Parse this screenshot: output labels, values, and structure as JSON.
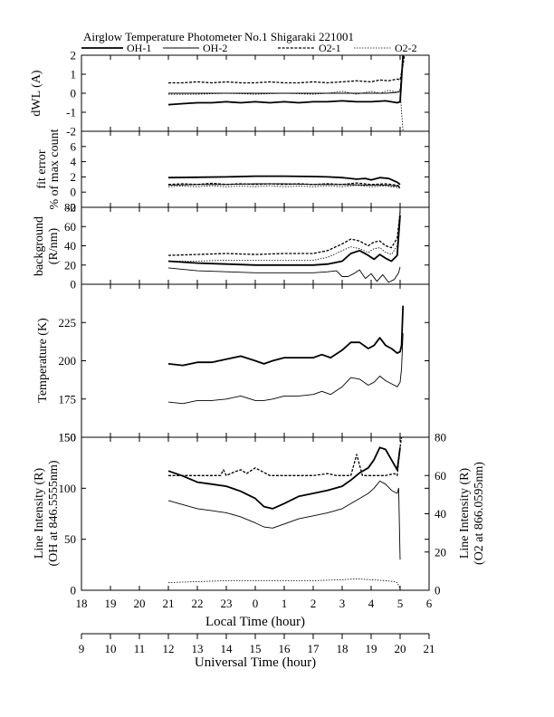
{
  "chart_data": {
    "type": "line",
    "title": "Airglow Temperature Photometer No.1  Shigaraki   221001",
    "legend": {
      "placement": "top",
      "entries": [
        {
          "name": "OH-1",
          "style": "solid-thick"
        },
        {
          "name": "OH-2",
          "style": "solid-thin"
        },
        {
          "name": "O2-1",
          "style": "dashed"
        },
        {
          "name": "O2-2",
          "style": "dotted"
        }
      ]
    },
    "x_axis_bottom": {
      "label": "Local Time (hour)",
      "range": [
        18,
        30
      ],
      "ticks": [
        18,
        19,
        20,
        21,
        22,
        23,
        24,
        25,
        26,
        27,
        28,
        29,
        30
      ],
      "tick_labels": [
        "18",
        "19",
        "20",
        "21",
        "22",
        "23",
        "0",
        "1",
        "2",
        "3",
        "4",
        "5",
        "6"
      ]
    },
    "x_axis_secondary": {
      "label": "Universal Time (hour)",
      "ticks": [
        9,
        10,
        11,
        12,
        13,
        14,
        15,
        16,
        17,
        18,
        19,
        20,
        21
      ],
      "tick_labels": [
        "9",
        "10",
        "11",
        "12",
        "13",
        "14",
        "15",
        "16",
        "17",
        "18",
        "19",
        "20",
        "21"
      ]
    },
    "panels": [
      {
        "id": "dwl",
        "ylabel": "dWL (A)",
        "ylim": [
          -2,
          2
        ],
        "yticks": [
          -2,
          -1,
          0,
          1,
          2
        ],
        "series": [
          {
            "name": "OH-1",
            "x": [
              21,
              21.5,
              22,
              22.5,
              23,
              23.5,
              24,
              24.5,
              25,
              25.5,
              26,
              26.5,
              27,
              27.5,
              28,
              28.5,
              28.9,
              29,
              29.1
            ],
            "y": [
              -0.6,
              -0.55,
              -0.5,
              -0.5,
              -0.45,
              -0.5,
              -0.45,
              -0.5,
              -0.45,
              -0.5,
              -0.45,
              -0.45,
              -0.4,
              -0.45,
              -0.45,
              -0.4,
              -0.5,
              -0.45,
              2.0
            ]
          },
          {
            "name": "OH-2",
            "x": [
              21,
              22,
              23,
              24,
              25,
              26,
              27,
              28,
              28.5,
              28.9,
              29,
              29.1
            ],
            "y": [
              0.0,
              0.0,
              0.0,
              0.0,
              0.0,
              0.0,
              0.0,
              0.0,
              0.0,
              0.05,
              0.1,
              2.0
            ]
          },
          {
            "name": "O2-1",
            "x": [
              21,
              21.5,
              22,
              22.5,
              23,
              23.5,
              24,
              24.5,
              25,
              25.5,
              26,
              26.5,
              27,
              27.5,
              28,
              28.3,
              28.6,
              28.9,
              29,
              29.1,
              29.15
            ],
            "y": [
              0.55,
              0.55,
              0.6,
              0.55,
              0.6,
              0.55,
              0.55,
              0.6,
              0.55,
              0.55,
              0.6,
              0.55,
              0.6,
              0.65,
              0.6,
              0.7,
              0.65,
              0.75,
              0.7,
              1.5,
              2.0
            ]
          },
          {
            "name": "O2-2",
            "x": [
              21,
              22,
              23,
              24,
              25,
              26,
              26.5,
              27,
              27.5,
              28,
              28.3,
              28.6,
              28.9,
              29,
              29.05,
              29.1
            ],
            "y": [
              -0.05,
              -0.05,
              0.0,
              -0.05,
              0.0,
              -0.05,
              0.0,
              0.1,
              -0.05,
              0.1,
              0.0,
              0.15,
              0.05,
              0.2,
              -1.0,
              -2.0
            ]
          }
        ]
      },
      {
        "id": "fit",
        "ylabel": "fit error",
        "ylabel2": "% of max count",
        "ylim": [
          -2,
          8
        ],
        "yticks": [
          -2,
          0,
          2,
          4,
          6
        ],
        "series": [
          {
            "name": "OH-1",
            "x": [
              21,
              22,
              23,
              24,
              25,
              26,
              26.5,
              27,
              27.5,
              27.8,
              28,
              28.3,
              28.6,
              28.9,
              29
            ],
            "y": [
              1.9,
              1.95,
              2.0,
              2.1,
              2.1,
              2.05,
              2.0,
              1.9,
              1.7,
              1.8,
              1.6,
              1.9,
              1.8,
              1.3,
              1.0
            ]
          },
          {
            "name": "OH-2",
            "x": [
              21,
              22,
              23,
              24,
              25,
              26,
              27,
              28,
              28.5,
              28.9,
              29
            ],
            "y": [
              0.9,
              1.0,
              1.0,
              1.1,
              1.1,
              1.0,
              1.0,
              0.9,
              0.9,
              0.8,
              0.6
            ]
          },
          {
            "name": "O2-1",
            "x": [
              21,
              21.5,
              22,
              22.5,
              23,
              23.5,
              24,
              24.5,
              25,
              25.5,
              26,
              26.5,
              27,
              27.5,
              28,
              28.5,
              28.9,
              29
            ],
            "y": [
              1.0,
              1.1,
              1.0,
              1.15,
              1.0,
              1.1,
              1.0,
              1.1,
              1.0,
              1.1,
              1.0,
              1.1,
              1.0,
              1.2,
              1.0,
              1.1,
              0.9,
              0.7
            ]
          },
          {
            "name": "O2-2",
            "x": [
              21,
              21.5,
              22,
              22.5,
              23,
              23.5,
              24,
              24.5,
              25,
              25.5,
              26,
              26.5,
              27,
              27.5,
              28,
              28.5,
              28.9,
              29
            ],
            "y": [
              0.7,
              0.8,
              0.7,
              0.85,
              0.7,
              0.8,
              0.7,
              0.85,
              0.7,
              0.8,
              0.7,
              0.85,
              0.7,
              0.9,
              0.7,
              0.8,
              0.6,
              0.5
            ]
          }
        ]
      },
      {
        "id": "bg",
        "ylabel": "background",
        "ylabel2": "(R/nm)",
        "ylim": [
          0,
          80
        ],
        "yticks": [
          0,
          20,
          40,
          60,
          80
        ],
        "series": [
          {
            "name": "OH-1",
            "x": [
              21,
              22,
              23,
              24,
              25,
              26,
              26.5,
              27,
              27.3,
              27.6,
              27.9,
              28.1,
              28.3,
              28.5,
              28.7,
              28.9,
              29
            ],
            "y": [
              24,
              22,
              21,
              20,
              20,
              20,
              21,
              24,
              32,
              35,
              30,
              26,
              31,
              27,
              24,
              30,
              72
            ]
          },
          {
            "name": "OH-2",
            "x": [
              21,
              22,
              23,
              24,
              25,
              26,
              26.5,
              26.8,
              27,
              27.2,
              27.4,
              27.6,
              27.8,
              28,
              28.2,
              28.4,
              28.6,
              28.8,
              28.95,
              29
            ],
            "y": [
              17,
              14,
              13,
              12,
              12,
              12,
              13,
              14,
              8,
              8,
              11,
              15,
              6,
              11,
              3,
              10,
              2,
              5,
              12,
              18
            ]
          },
          {
            "name": "O2-1",
            "x": [
              21,
              22,
              23,
              24,
              25,
              26,
              26.5,
              27,
              27.3,
              27.6,
              27.9,
              28.1,
              28.3,
              28.5,
              28.7,
              28.9,
              29
            ],
            "y": [
              30,
              31,
              32,
              31,
              32,
              32,
              35,
              42,
              47,
              45,
              40,
              44,
              45,
              40,
              38,
              48,
              75
            ]
          },
          {
            "name": "O2-2",
            "x": [
              21,
              22,
              23,
              24,
              25,
              26,
              26.5,
              27,
              27.3,
              27.6,
              27.9,
              28.1,
              28.3,
              28.5,
              28.7,
              28.9,
              29
            ],
            "y": [
              24,
              24,
              25,
              25,
              25,
              25,
              28,
              35,
              39,
              37,
              33,
              37,
              38,
              33,
              31,
              40,
              78
            ]
          }
        ]
      },
      {
        "id": "temp",
        "ylabel": "Temperature (K)",
        "ylim": [
          150,
          250
        ],
        "yticks": [
          150,
          175,
          200,
          225
        ],
        "series": [
          {
            "name": "OH-1",
            "x": [
              21,
              21.5,
              22,
              22.5,
              23,
              23.5,
              24,
              24.3,
              24.6,
              25,
              25.5,
              26,
              26.3,
              26.6,
              27,
              27.3,
              27.6,
              27.9,
              28.1,
              28.3,
              28.5,
              28.7,
              28.9,
              29,
              29.05,
              29.1
            ],
            "y": [
              198,
              197,
              199,
              199,
              201,
              203,
              200,
              198,
              200,
              202,
              202,
              202,
              204,
              202,
              207,
              212,
              212,
              208,
              210,
              215,
              210,
              208,
              205,
              206,
              210,
              236
            ]
          },
          {
            "name": "OH-2",
            "x": [
              21,
              21.5,
              22,
              22.5,
              23,
              23.5,
              24,
              24.3,
              24.6,
              25,
              25.5,
              26,
              26.3,
              26.6,
              27,
              27.3,
              27.6,
              27.9,
              28.1,
              28.3,
              28.5,
              28.7,
              28.9,
              29,
              29.05,
              29.1
            ],
            "y": [
              173,
              172,
              174,
              174,
              175,
              177,
              174,
              174,
              175,
              177,
              177,
              178,
              180,
              178,
              183,
              189,
              188,
              184,
              186,
              190,
              187,
              185,
              183,
              186,
              195,
              218
            ]
          }
        ]
      },
      {
        "id": "intensity",
        "ylabel": "Line Intensity (R)",
        "ylabel2": "(OH at 846.5555nm)",
        "ylabel_right": "Line Intensity (R)",
        "ylabel_right2": "(O2 at 866.0595nm)",
        "ylim": [
          0,
          150
        ],
        "yticks": [
          0,
          50,
          100,
          150
        ],
        "ylim_right": [
          0,
          80
        ],
        "yticks_right": [
          0,
          20,
          40,
          60,
          80
        ],
        "series": [
          {
            "name": "OH-1",
            "axis": "left",
            "x": [
              21,
              21.5,
              22,
              22.5,
              23,
              23.5,
              24,
              24.3,
              24.6,
              25,
              25.5,
              26,
              26.5,
              27,
              27.3,
              27.6,
              27.9,
              28.1,
              28.3,
              28.5,
              28.7,
              28.9,
              29
            ],
            "y": [
              117,
              112,
              106,
              104,
              102,
              97,
              90,
              82,
              80,
              85,
              92,
              95,
              98,
              102,
              108,
              115,
              120,
              128,
              140,
              138,
              128,
              118,
              140
            ]
          },
          {
            "name": "OH-2",
            "axis": "left",
            "x": [
              21,
              21.5,
              22,
              22.5,
              23,
              23.5,
              24,
              24.3,
              24.6,
              25,
              25.5,
              26,
              26.5,
              27,
              27.3,
              27.6,
              27.9,
              28.1,
              28.3,
              28.5,
              28.7,
              28.9,
              28.95,
              29
            ],
            "y": [
              88,
              84,
              80,
              78,
              76,
              72,
              66,
              62,
              61,
              65,
              70,
              73,
              76,
              80,
              85,
              90,
              95,
              100,
              107,
              104,
              98,
              95,
              100,
              30
            ]
          },
          {
            "name": "O2-1",
            "axis": "right",
            "x": [
              21,
              22,
              22.8,
              22.9,
              23,
              23.3,
              23.5,
              23.7,
              24,
              24.5,
              25,
              26,
              26.5,
              26.8,
              27,
              27.3,
              27.5,
              27.7,
              27.9,
              28.5,
              28.8,
              28.9,
              29,
              29.05
            ],
            "y": [
              60,
              60,
              60,
              63,
              60,
              62,
              63,
              61,
              64,
              60,
              60,
              60,
              61,
              60,
              60,
              60,
              71,
              60,
              60,
              60,
              61,
              60,
              75,
              80
            ]
          },
          {
            "name": "O2-2",
            "axis": "right",
            "x": [
              21,
              22,
              23,
              24,
              25,
              26,
              27,
              27.5,
              28,
              28.5,
              28.8,
              28.9,
              29
            ],
            "y": [
              4,
              4.5,
              5,
              5,
              5,
              5,
              5.5,
              6,
              5.5,
              5,
              4.5,
              4,
              1
            ]
          }
        ]
      }
    ]
  }
}
